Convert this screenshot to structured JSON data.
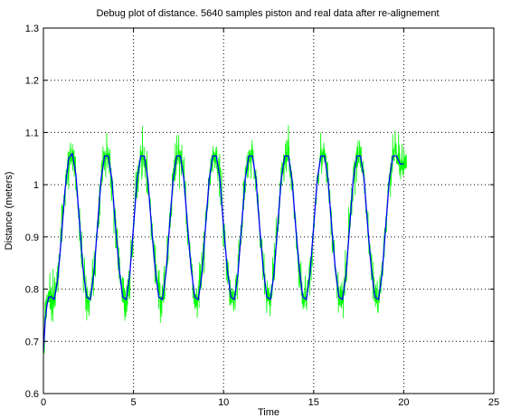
{
  "chart_data": {
    "type": "line",
    "title": "Debug plot of distance. 5640 samples piston and real data after re-alignement",
    "xlabel": "Time",
    "ylabel": "Distance (meters)",
    "xlim": [
      0,
      25
    ],
    "ylim": [
      0.6,
      1.3
    ],
    "x_ticks": [
      0,
      5,
      10,
      15,
      20,
      25
    ],
    "y_ticks": [
      0.6,
      0.7,
      0.8,
      0.9,
      1,
      1.1,
      1.2,
      1.3
    ],
    "x_tick_labels": [
      "0",
      "5",
      "10",
      "15",
      "20",
      "25"
    ],
    "y_tick_labels": [
      "0.6",
      "0.7",
      "0.8",
      "0.9",
      "1",
      "1.1",
      "1.2",
      "1.3"
    ],
    "grid": true,
    "grid_style": "dotted",
    "series": [
      {
        "color": "#00ff00",
        "style": "noisy",
        "x": [
          0.0,
          0.1,
          0.2,
          0.3,
          0.45,
          0.6,
          0.8,
          1.0,
          1.2,
          1.4,
          1.6,
          1.8,
          2.0,
          2.2,
          2.4,
          2.6,
          2.8,
          3.0,
          3.2,
          3.4,
          3.6,
          3.8,
          4.0,
          4.2,
          4.4,
          4.6,
          4.8,
          5.0,
          5.2,
          5.4,
          5.6,
          5.8,
          6.0,
          6.2,
          6.4,
          6.6,
          6.8,
          7.0,
          7.2,
          7.4,
          7.6,
          7.8,
          8.0,
          8.2,
          8.4,
          8.6,
          8.8,
          9.0,
          9.2,
          9.4,
          9.6,
          9.8,
          10.0,
          10.2,
          10.4,
          10.6,
          10.8,
          11.0,
          11.2,
          11.4,
          11.6,
          11.8,
          12.0,
          12.2,
          12.4,
          12.6,
          12.8,
          13.0,
          13.2,
          13.4,
          13.6,
          13.8,
          14.0,
          14.2,
          14.4,
          14.6,
          14.8,
          15.0,
          15.2,
          15.4,
          15.6,
          15.8,
          16.0,
          16.2,
          16.4,
          16.6,
          16.8,
          17.0,
          17.2,
          17.4,
          17.6,
          17.8,
          18.0,
          18.2,
          18.4,
          18.6,
          18.8,
          19.0,
          19.2,
          19.4,
          19.6,
          19.8,
          20.0
        ],
        "y": [
          0.68,
          0.74,
          0.77,
          0.785,
          0.785,
          0.78,
          0.82,
          0.9,
          0.99,
          1.05,
          1.06,
          1.02,
          0.93,
          0.84,
          0.785,
          0.78,
          0.83,
          0.92,
          1.01,
          1.055,
          1.055,
          1.01,
          0.92,
          0.84,
          0.785,
          0.78,
          0.83,
          0.92,
          1.01,
          1.055,
          1.055,
          1.01,
          0.92,
          0.84,
          0.785,
          0.78,
          0.83,
          0.92,
          1.01,
          1.055,
          1.055,
          1.01,
          0.92,
          0.84,
          0.785,
          0.78,
          0.83,
          0.92,
          1.01,
          1.055,
          1.055,
          1.01,
          0.92,
          0.84,
          0.785,
          0.78,
          0.83,
          0.92,
          1.01,
          1.055,
          1.055,
          1.01,
          0.92,
          0.84,
          0.785,
          0.78,
          0.83,
          0.92,
          1.01,
          1.055,
          1.055,
          1.01,
          0.92,
          0.84,
          0.785,
          0.78,
          0.83,
          0.92,
          1.01,
          1.055,
          1.055,
          1.01,
          0.92,
          0.84,
          0.785,
          0.78,
          0.83,
          0.92,
          1.01,
          1.055,
          1.055,
          1.01,
          0.92,
          0.84,
          0.785,
          0.78,
          0.83,
          0.92,
          1.01,
          1.055,
          1.055,
          1.04,
          1.04
        ]
      },
      {
        "color": "#0000ff",
        "style": "smooth",
        "x": [
          0.0,
          0.1,
          0.2,
          0.3,
          0.45,
          0.6,
          0.8,
          1.0,
          1.2,
          1.4,
          1.6,
          1.8,
          2.0,
          2.2,
          2.4,
          2.6,
          2.8,
          3.0,
          3.2,
          3.4,
          3.6,
          3.8,
          4.0,
          4.2,
          4.4,
          4.6,
          4.8,
          5.0,
          5.2,
          5.4,
          5.6,
          5.8,
          6.0,
          6.2,
          6.4,
          6.6,
          6.8,
          7.0,
          7.2,
          7.4,
          7.6,
          7.8,
          8.0,
          8.2,
          8.4,
          8.6,
          8.8,
          9.0,
          9.2,
          9.4,
          9.6,
          9.8,
          10.0,
          10.2,
          10.4,
          10.6,
          10.8,
          11.0,
          11.2,
          11.4,
          11.6,
          11.8,
          12.0,
          12.2,
          12.4,
          12.6,
          12.8,
          13.0,
          13.2,
          13.4,
          13.6,
          13.8,
          14.0,
          14.2,
          14.4,
          14.6,
          14.8,
          15.0,
          15.2,
          15.4,
          15.6,
          15.8,
          16.0,
          16.2,
          16.4,
          16.6,
          16.8,
          17.0,
          17.2,
          17.4,
          17.6,
          17.8,
          18.0,
          18.2,
          18.4,
          18.6,
          18.8,
          19.0,
          19.2,
          19.4,
          19.6,
          19.8,
          20.0
        ],
        "y": [
          0.68,
          0.74,
          0.77,
          0.785,
          0.785,
          0.78,
          0.82,
          0.9,
          0.99,
          1.05,
          1.06,
          1.02,
          0.93,
          0.84,
          0.785,
          0.78,
          0.83,
          0.92,
          1.01,
          1.055,
          1.055,
          1.01,
          0.92,
          0.84,
          0.785,
          0.78,
          0.83,
          0.92,
          1.01,
          1.055,
          1.055,
          1.01,
          0.92,
          0.84,
          0.785,
          0.78,
          0.83,
          0.92,
          1.01,
          1.055,
          1.055,
          1.01,
          0.92,
          0.84,
          0.785,
          0.78,
          0.83,
          0.92,
          1.01,
          1.055,
          1.055,
          1.01,
          0.92,
          0.84,
          0.785,
          0.78,
          0.83,
          0.92,
          1.01,
          1.055,
          1.055,
          1.01,
          0.92,
          0.84,
          0.785,
          0.78,
          0.83,
          0.92,
          1.01,
          1.055,
          1.055,
          1.01,
          0.92,
          0.84,
          0.785,
          0.78,
          0.83,
          0.92,
          1.01,
          1.055,
          1.055,
          1.01,
          0.92,
          0.84,
          0.785,
          0.78,
          0.83,
          0.92,
          1.01,
          1.055,
          1.055,
          1.01,
          0.92,
          0.84,
          0.785,
          0.78,
          0.83,
          0.92,
          1.01,
          1.055,
          1.055,
          1.04,
          1.04
        ]
      }
    ]
  }
}
